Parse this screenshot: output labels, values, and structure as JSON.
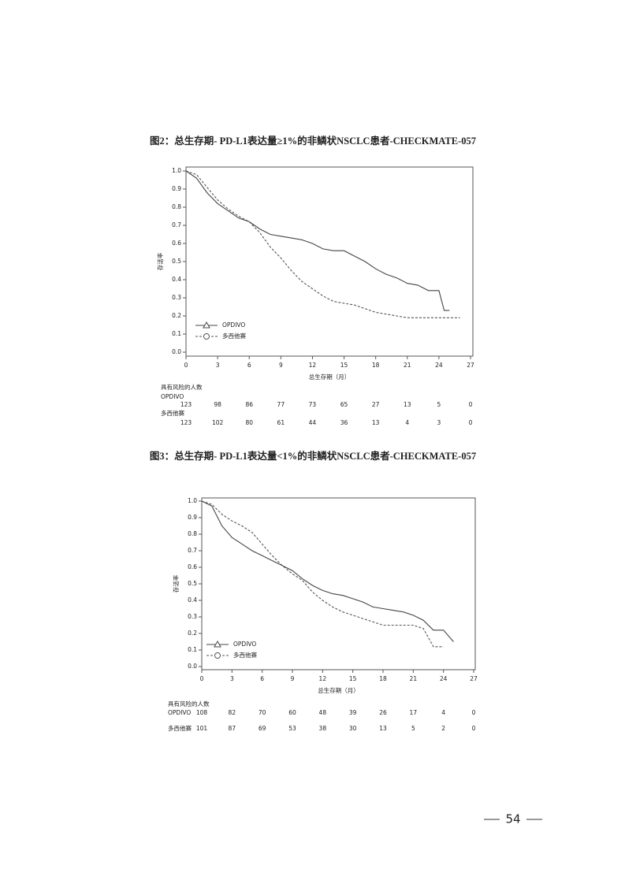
{
  "chart_data": [
    {
      "type": "line",
      "title": "图2：总生存期- PD-L1表达量≥1%的非鳞状NSCLC患者-CHECKMATE-057",
      "x_label": "总生存期（月）",
      "y_label": "存活率",
      "x": [
        0,
        1,
        2,
        3,
        4,
        5,
        6,
        7,
        8,
        9,
        10,
        11,
        12,
        13,
        14,
        15,
        16,
        17,
        18,
        19,
        20,
        21,
        22,
        23,
        24,
        24.5,
        25,
        26
      ],
      "series": [
        {
          "name": "OPDIVO",
          "color": "#444444",
          "line_style": "solid",
          "marker": "triangle",
          "values": [
            1.0,
            0.96,
            0.88,
            0.82,
            0.78,
            0.74,
            0.72,
            0.68,
            0.65,
            0.64,
            0.63,
            0.62,
            0.6,
            0.57,
            0.56,
            0.56,
            0.53,
            0.5,
            0.46,
            0.43,
            0.41,
            0.38,
            0.37,
            0.34,
            0.34,
            0.23,
            0.23,
            null
          ]
        },
        {
          "name": "多西他赛",
          "color": "#555555",
          "line_style": "dashed",
          "marker": "circle",
          "values": [
            1.0,
            0.98,
            0.91,
            0.84,
            0.79,
            0.75,
            0.72,
            0.66,
            0.58,
            0.52,
            0.45,
            0.39,
            0.35,
            0.31,
            0.28,
            0.27,
            0.26,
            0.24,
            0.22,
            0.21,
            0.2,
            0.19,
            0.19,
            0.19,
            0.19,
            0.19,
            0.19,
            0.19
          ]
        }
      ],
      "xlim": [
        0,
        27
      ],
      "ylim": [
        0,
        1
      ],
      "xticks": [
        0,
        3,
        6,
        9,
        12,
        15,
        18,
        21,
        24,
        27
      ],
      "yticks": [
        {
          "value": 0,
          "label": "0.0"
        },
        0.1,
        0.2,
        0.3,
        0.4,
        0.5,
        0.6,
        0.7,
        0.8,
        0.9,
        {
          "value": 1,
          "label": "1.0"
        }
      ],
      "at_risk_title": "具有风险的人数",
      "at_risk": [
        [
          123,
          98,
          86,
          77,
          73,
          65,
          27,
          13,
          5,
          0
        ],
        [
          123,
          102,
          80,
          61,
          44,
          36,
          13,
          4,
          3,
          0
        ]
      ]
    },
    {
      "type": "line",
      "title": "图3：总生存期- PD-L1表达量<1%的非鳞状NSCLC患者-CHECKMATE-057",
      "x_label": "总生存期（月）",
      "y_label": "存活率",
      "x": [
        0,
        1,
        2,
        3,
        4,
        5,
        6,
        7,
        8,
        9,
        10,
        11,
        12,
        13,
        14,
        15,
        16,
        17,
        18,
        19,
        20,
        21,
        22,
        23,
        24,
        25
      ],
      "series": [
        {
          "name": "OPDIVO",
          "color": "#444444",
          "line_style": "solid",
          "marker": "triangle",
          "values": [
            1.0,
            0.97,
            0.85,
            0.78,
            0.74,
            0.7,
            0.67,
            0.64,
            0.61,
            0.58,
            0.53,
            0.49,
            0.46,
            0.44,
            0.43,
            0.41,
            0.39,
            0.36,
            0.35,
            0.34,
            0.33,
            0.31,
            0.28,
            0.22,
            0.22,
            0.15
          ]
        },
        {
          "name": "多西他赛",
          "color": "#555555",
          "line_style": "dashed",
          "marker": "circle",
          "values": [
            1.0,
            0.98,
            0.92,
            0.88,
            0.85,
            0.81,
            0.74,
            0.67,
            0.61,
            0.56,
            0.52,
            0.45,
            0.4,
            0.36,
            0.33,
            0.31,
            0.29,
            0.27,
            0.25,
            0.25,
            0.25,
            0.25,
            0.23,
            0.12,
            0.12,
            null
          ]
        }
      ],
      "xlim": [
        0,
        27
      ],
      "ylim": [
        0,
        1
      ],
      "xticks": [
        0,
        3,
        6,
        9,
        12,
        15,
        18,
        21,
        24,
        27
      ],
      "yticks": [
        {
          "value": 0,
          "label": "0.0"
        },
        0.1,
        0.2,
        0.3,
        0.4,
        0.5,
        0.6,
        0.7,
        0.8,
        0.9,
        {
          "value": 1,
          "label": "1.0"
        }
      ],
      "at_risk_title": "具有风险的人数",
      "at_risk": [
        [
          108,
          82,
          70,
          60,
          48,
          39,
          26,
          17,
          4,
          0
        ],
        [
          101,
          87,
          69,
          53,
          38,
          30,
          13,
          5,
          2,
          0
        ]
      ]
    }
  ],
  "page_number": "54"
}
